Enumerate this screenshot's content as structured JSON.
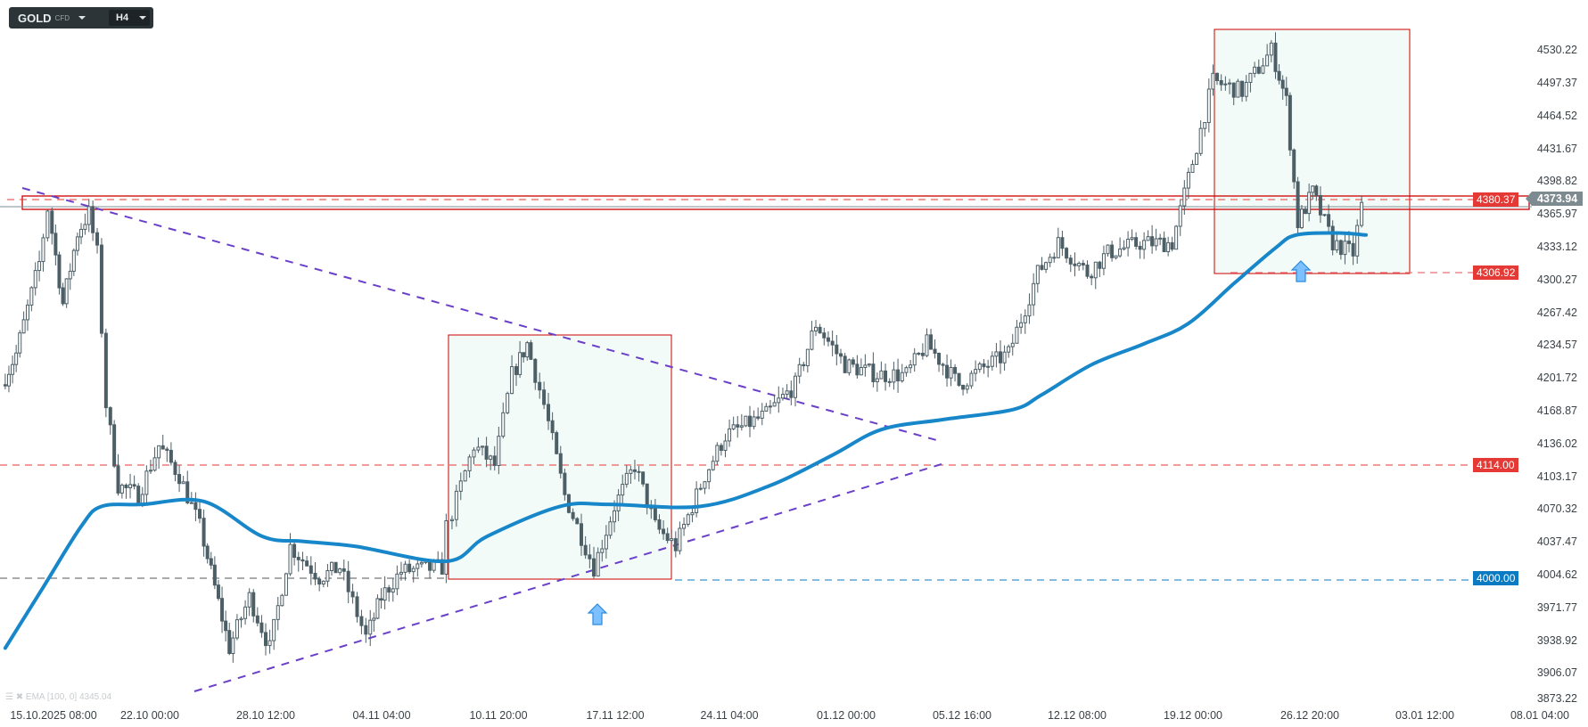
{
  "toolbar": {
    "symbol": "GOLD",
    "instrument_type": "CFD",
    "timeframe": "H4"
  },
  "indicator_legend": "EMA [100, 0] 4345.04",
  "colors": {
    "bull_body": "#ffffff",
    "bear_body": "#4c5e66",
    "ema": "#1787c9",
    "zone": "#cc0000",
    "trendline": "#6a3fc9",
    "support_tag": "#0a7ac2",
    "resistance_tag": "#e53935"
  },
  "chart_data": {
    "type": "candlestick",
    "price_axis": [
      "4530.22",
      "4497.37",
      "4464.52",
      "4431.67",
      "4398.82",
      "4365.97",
      "4333.12",
      "4300.27",
      "4267.42",
      "4234.57",
      "4201.72",
      "4168.87",
      "4136.02",
      "4103.17",
      "4070.32",
      "4037.47",
      "4004.62",
      "3971.77",
      "3938.92",
      "3906.07",
      "3873.22"
    ],
    "time_axis": [
      "15.10.2025  08:00",
      "22.10  00:00",
      "28.10  12:00",
      "04.11  04:00",
      "10.11  20:00",
      "17.11  12:00",
      "24.11  04:00",
      "01.12  00:00",
      "05.12  16:00",
      "12.12  08:00",
      "19.12  00:00",
      "26.12  20:00",
      "03.01  12:00",
      "08.01  04:00"
    ],
    "ylim": [
      3873.22,
      4540
    ],
    "current_price": "4373.94",
    "levels": [
      {
        "price": "4380.37",
        "style": "dashed",
        "color": "#e53935"
      },
      {
        "price": "4306.92",
        "style": "dashed",
        "color": "#e53935"
      },
      {
        "price": "4114.00",
        "style": "dashed",
        "color": "#e53935"
      },
      {
        "price": "4000.00",
        "style": "dashed",
        "color": "#0a7ac2"
      }
    ],
    "resistance_zone": [
      4366,
      4381
    ],
    "close_path": [
      [
        "12.10 20:00",
        4195
      ],
      [
        "13.10 16:00",
        4226
      ],
      [
        "15.10 00:00",
        4317
      ],
      [
        "15.10 12:00",
        4372
      ],
      [
        "16.10 08:00",
        4276
      ],
      [
        "17.10 04:00",
        4347
      ],
      [
        "17.10 20:00",
        4367
      ],
      [
        "18.10 08:00",
        4327
      ],
      [
        "18.10 20:00",
        4175
      ],
      [
        "19.10 12:00",
        4094
      ],
      [
        "20.10 16:00",
        4084
      ],
      [
        "21.10 20:00",
        4134
      ],
      [
        "23.10 00:00",
        4104
      ],
      [
        "24.10 04:00",
        4053
      ],
      [
        "25.10 00:00",
        3992
      ],
      [
        "25.10 20:00",
        3931
      ],
      [
        "27.10 00:00",
        3982
      ],
      [
        "28.10 04:00",
        3931
      ],
      [
        "29.10 08:00",
        4033
      ],
      [
        "31.10 00:00",
        4002
      ],
      [
        "01.11 04:00",
        4012
      ],
      [
        "02.11 16:00",
        3942
      ],
      [
        "03.11 12:00",
        3982
      ],
      [
        "04.11 16:00",
        4008
      ],
      [
        "07.11 00:00",
        4012
      ],
      [
        "07.11 08:00",
        4053
      ],
      [
        "08.11 20:00",
        4134
      ],
      [
        "10.11 00:00",
        4114
      ],
      [
        "11.11 00:00",
        4205
      ],
      [
        "11.11 20:00",
        4236
      ],
      [
        "12.11 20:00",
        4175
      ],
      [
        "14.11 00:00",
        4084
      ],
      [
        "15.11 16:00",
        4012
      ],
      [
        "16.11 20:00",
        4073
      ],
      [
        "18.11 00:00",
        4114
      ],
      [
        "19.11 04:00",
        4053
      ],
      [
        "20.11 08:00",
        4033
      ],
      [
        "22.11 00:00",
        4104
      ],
      [
        "23.11 04:00",
        4144
      ],
      [
        "25.11 12:00",
        4165
      ],
      [
        "27.11 04:00",
        4195
      ],
      [
        "28.11 08:00",
        4256
      ],
      [
        "30.11 00:00",
        4215
      ],
      [
        "01.12 20:00",
        4205
      ],
      [
        "03.12 12:00",
        4205
      ],
      [
        "04.12 16:00",
        4236
      ],
      [
        "06.12 12:00",
        4195
      ],
      [
        "08.12 04:00",
        4215
      ],
      [
        "09.12 08:00",
        4226
      ],
      [
        "11.12 00:00",
        4307
      ],
      [
        "12.12 04:00",
        4337
      ],
      [
        "13.12 20:00",
        4307
      ],
      [
        "15.12 00:00",
        4327
      ],
      [
        "16.12 20:00",
        4337
      ],
      [
        "18.12 16:00",
        4337
      ],
      [
        "19.12 20:00",
        4418
      ],
      [
        "21.12 00:00",
        4499
      ],
      [
        "22.12 16:00",
        4489
      ],
      [
        "24.12 08:00",
        4530
      ],
      [
        "25.12 04:00",
        4479
      ],
      [
        "25.12 20:00",
        4357
      ],
      [
        "26.12 16:00",
        4388
      ],
      [
        "27.12 20:00",
        4337
      ],
      [
        "29.12 00:00",
        4327
      ],
      [
        "29.12 12:00",
        4374
      ]
    ],
    "ema_100": [
      [
        "12.10 20:00",
        3931
      ],
      [
        "15.10 00:00",
        3992
      ],
      [
        "17.10 04:00",
        4053
      ],
      [
        "18.10 08:00",
        4073
      ],
      [
        "20.10 16:00",
        4075
      ],
      [
        "24.10 04:00",
        4078
      ],
      [
        "27.10 12:00",
        4043
      ],
      [
        "29.10 20:00",
        4038
      ],
      [
        "01.11 20:00",
        4033
      ],
      [
        "07.11 00:00",
        4018
      ],
      [
        "09.11 08:00",
        4043
      ],
      [
        "13.11 12:00",
        4073
      ],
      [
        "16.11 08:00",
        4075
      ],
      [
        "21.11 12:00",
        4073
      ],
      [
        "25.11 12:00",
        4094
      ],
      [
        "29.11 00:00",
        4124
      ],
      [
        "01.12 20:00",
        4150
      ],
      [
        "05.12 08:00",
        4160
      ],
      [
        "09.12 08:00",
        4170
      ],
      [
        "11.12 00:00",
        4185
      ],
      [
        "13.12 20:00",
        4215
      ],
      [
        "16.12 20:00",
        4236
      ],
      [
        "19.12 08:00",
        4256
      ],
      [
        "22.12 00:00",
        4297
      ],
      [
        "24.12 08:00",
        4332
      ],
      [
        "25.12 12:00",
        4345
      ],
      [
        "27.12 20:00",
        4347
      ],
      [
        "29.12 12:00",
        4345
      ]
    ]
  }
}
